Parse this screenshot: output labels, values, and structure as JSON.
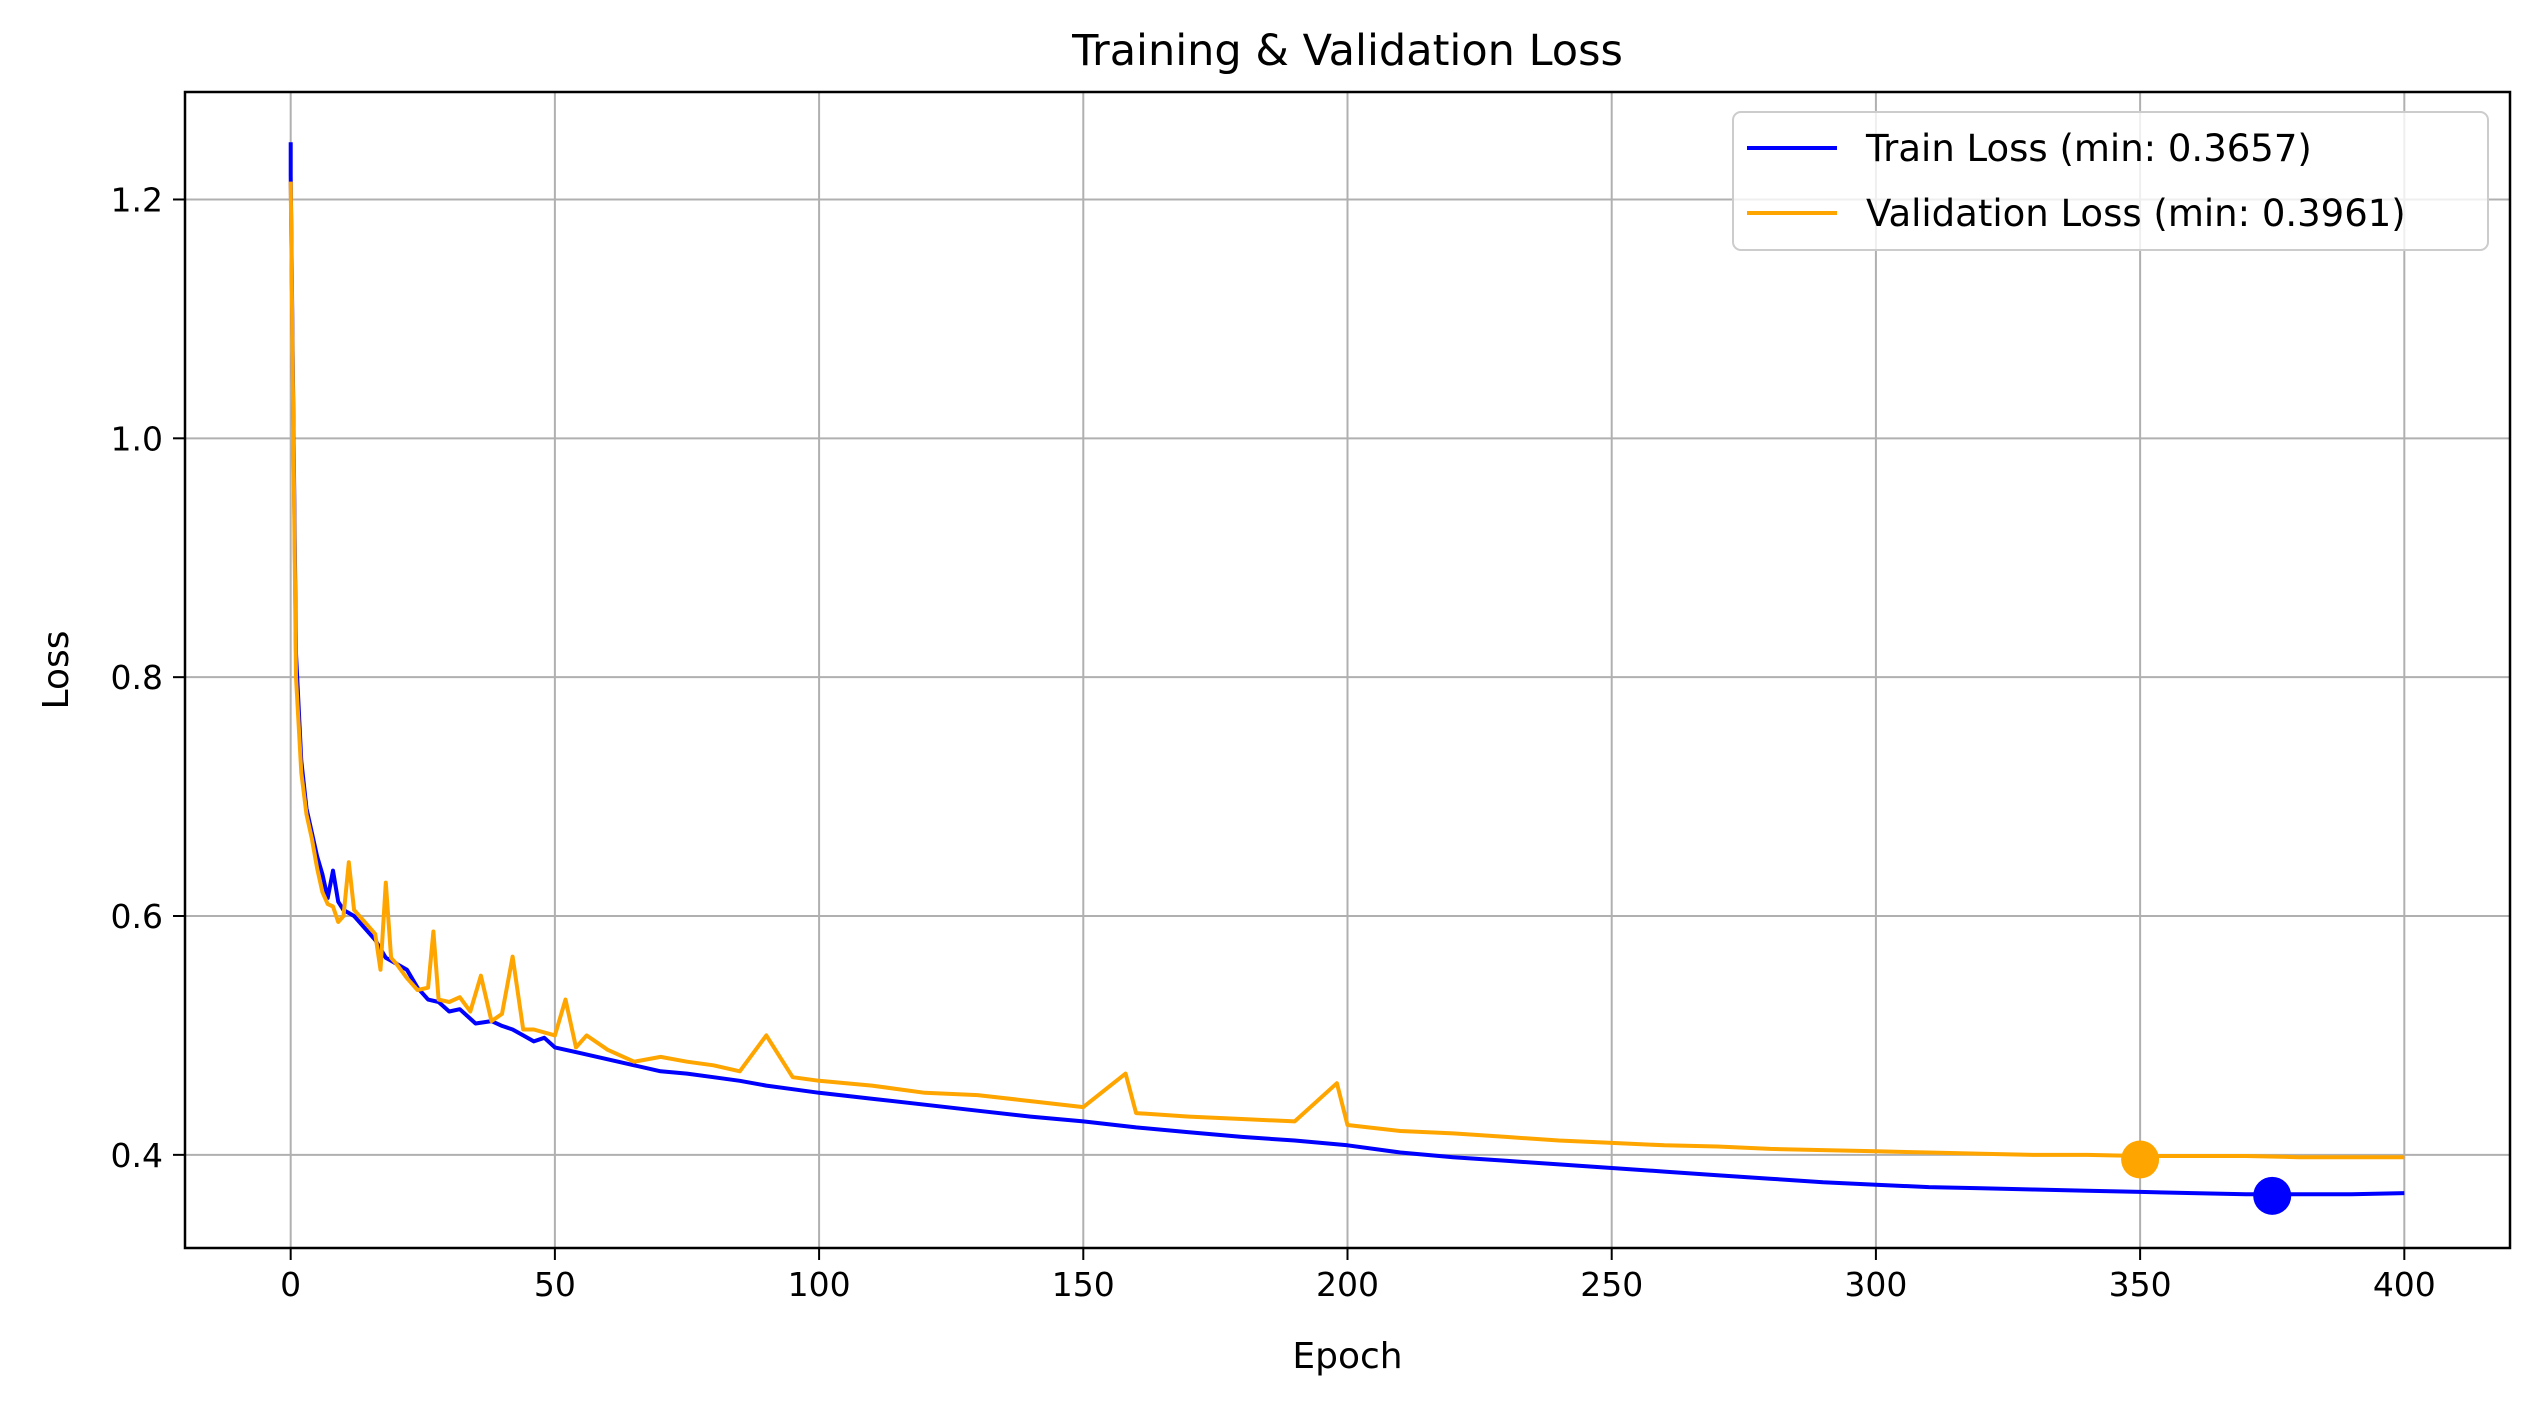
{
  "chart_data": {
    "type": "line",
    "title": "Training & Validation Loss",
    "xlabel": "Epoch",
    "ylabel": "Loss",
    "xlim": [
      -20,
      420
    ],
    "ylim": [
      0.322,
      1.29
    ],
    "x_ticks": [
      0,
      50,
      100,
      150,
      200,
      250,
      300,
      350,
      400
    ],
    "y_ticks": [
      0.4,
      0.6,
      0.8,
      1.0,
      1.2
    ],
    "y_tick_labels": [
      "0.4",
      "0.6",
      "0.8",
      "1.0",
      "1.2"
    ],
    "grid": true,
    "legend_position": "top-right",
    "series": [
      {
        "name": "Train Loss (min: 0.3657)",
        "color": "#0000ff",
        "points": [
          [
            0,
            1.248
          ],
          [
            0,
            1.22
          ],
          [
            1,
            0.82
          ],
          [
            2,
            0.73
          ],
          [
            3,
            0.69
          ],
          [
            4,
            0.67
          ],
          [
            5,
            0.65
          ],
          [
            6,
            0.635
          ],
          [
            7,
            0.615
          ],
          [
            8,
            0.638
          ],
          [
            9,
            0.612
          ],
          [
            10,
            0.605
          ],
          [
            12,
            0.6
          ],
          [
            14,
            0.59
          ],
          [
            16,
            0.58
          ],
          [
            18,
            0.565
          ],
          [
            20,
            0.56
          ],
          [
            22,
            0.555
          ],
          [
            24,
            0.54
          ],
          [
            26,
            0.53
          ],
          [
            28,
            0.528
          ],
          [
            30,
            0.52
          ],
          [
            32,
            0.522
          ],
          [
            35,
            0.51
          ],
          [
            38,
            0.512
          ],
          [
            40,
            0.508
          ],
          [
            42,
            0.505
          ],
          [
            44,
            0.5
          ],
          [
            46,
            0.495
          ],
          [
            48,
            0.498
          ],
          [
            50,
            0.49
          ],
          [
            55,
            0.485
          ],
          [
            60,
            0.48
          ],
          [
            65,
            0.475
          ],
          [
            70,
            0.47
          ],
          [
            75,
            0.468
          ],
          [
            80,
            0.465
          ],
          [
            85,
            0.462
          ],
          [
            90,
            0.458
          ],
          [
            95,
            0.455
          ],
          [
            100,
            0.452
          ],
          [
            110,
            0.447
          ],
          [
            120,
            0.442
          ],
          [
            130,
            0.437
          ],
          [
            140,
            0.432
          ],
          [
            150,
            0.428
          ],
          [
            160,
            0.423
          ],
          [
            170,
            0.419
          ],
          [
            180,
            0.415
          ],
          [
            190,
            0.412
          ],
          [
            200,
            0.408
          ],
          [
            210,
            0.402
          ],
          [
            220,
            0.398
          ],
          [
            230,
            0.395
          ],
          [
            240,
            0.392
          ],
          [
            250,
            0.389
          ],
          [
            260,
            0.386
          ],
          [
            270,
            0.383
          ],
          [
            280,
            0.38
          ],
          [
            290,
            0.377
          ],
          [
            300,
            0.375
          ],
          [
            310,
            0.373
          ],
          [
            320,
            0.372
          ],
          [
            330,
            0.371
          ],
          [
            340,
            0.37
          ],
          [
            350,
            0.369
          ],
          [
            360,
            0.368
          ],
          [
            370,
            0.367
          ],
          [
            380,
            0.367
          ],
          [
            390,
            0.367
          ],
          [
            400,
            0.368
          ]
        ]
      },
      {
        "name": "Validation Loss (min: 0.3961)",
        "color": "#ffa500",
        "points": [
          [
            0,
            1.215
          ],
          [
            1,
            0.8
          ],
          [
            2,
            0.72
          ],
          [
            3,
            0.685
          ],
          [
            4,
            0.665
          ],
          [
            5,
            0.64
          ],
          [
            6,
            0.62
          ],
          [
            7,
            0.61
          ],
          [
            8,
            0.608
          ],
          [
            9,
            0.595
          ],
          [
            10,
            0.6
          ],
          [
            11,
            0.645
          ],
          [
            12,
            0.605
          ],
          [
            14,
            0.595
          ],
          [
            16,
            0.585
          ],
          [
            17,
            0.555
          ],
          [
            18,
            0.628
          ],
          [
            19,
            0.565
          ],
          [
            20,
            0.56
          ],
          [
            22,
            0.548
          ],
          [
            24,
            0.538
          ],
          [
            26,
            0.54
          ],
          [
            27,
            0.587
          ],
          [
            28,
            0.53
          ],
          [
            30,
            0.528
          ],
          [
            32,
            0.532
          ],
          [
            34,
            0.52
          ],
          [
            36,
            0.55
          ],
          [
            38,
            0.512
          ],
          [
            40,
            0.518
          ],
          [
            42,
            0.566
          ],
          [
            44,
            0.505
          ],
          [
            46,
            0.505
          ],
          [
            50,
            0.5
          ],
          [
            52,
            0.53
          ],
          [
            54,
            0.49
          ],
          [
            56,
            0.5
          ],
          [
            60,
            0.488
          ],
          [
            65,
            0.478
          ],
          [
            70,
            0.482
          ],
          [
            75,
            0.478
          ],
          [
            80,
            0.475
          ],
          [
            85,
            0.47
          ],
          [
            90,
            0.5
          ],
          [
            95,
            0.465
          ],
          [
            100,
            0.462
          ],
          [
            110,
            0.458
          ],
          [
            120,
            0.452
          ],
          [
            130,
            0.45
          ],
          [
            140,
            0.445
          ],
          [
            150,
            0.44
          ],
          [
            158,
            0.468
          ],
          [
            160,
            0.435
          ],
          [
            170,
            0.432
          ],
          [
            180,
            0.43
          ],
          [
            190,
            0.428
          ],
          [
            198,
            0.46
          ],
          [
            200,
            0.425
          ],
          [
            210,
            0.42
          ],
          [
            220,
            0.418
          ],
          [
            230,
            0.415
          ],
          [
            240,
            0.412
          ],
          [
            250,
            0.41
          ],
          [
            260,
            0.408
          ],
          [
            270,
            0.407
          ],
          [
            280,
            0.405
          ],
          [
            290,
            0.404
          ],
          [
            300,
            0.403
          ],
          [
            310,
            0.402
          ],
          [
            320,
            0.401
          ],
          [
            330,
            0.4
          ],
          [
            340,
            0.4
          ],
          [
            350,
            0.399
          ],
          [
            360,
            0.399
          ],
          [
            370,
            0.399
          ],
          [
            380,
            0.398
          ],
          [
            390,
            0.398
          ],
          [
            400,
            0.398
          ]
        ]
      }
    ],
    "markers": [
      {
        "series": "Train Loss (min: 0.3657)",
        "x": 375,
        "y": 0.3657,
        "color": "#0000ff"
      },
      {
        "series": "Validation Loss (min: 0.3961)",
        "x": 350,
        "y": 0.3961,
        "color": "#ffa500"
      }
    ]
  }
}
